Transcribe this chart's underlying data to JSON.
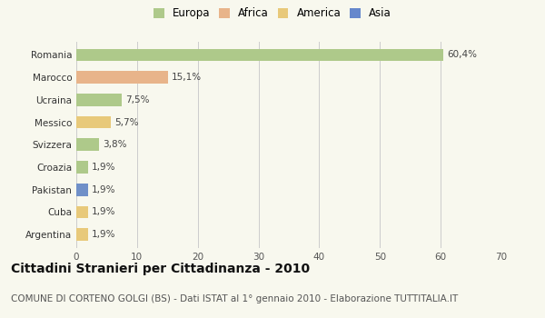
{
  "categories": [
    "Romania",
    "Marocco",
    "Ucraina",
    "Messico",
    "Svizzera",
    "Croazia",
    "Pakistan",
    "Cuba",
    "Argentina"
  ],
  "values": [
    60.4,
    15.1,
    7.5,
    5.7,
    3.8,
    1.9,
    1.9,
    1.9,
    1.9
  ],
  "labels": [
    "60,4%",
    "15,1%",
    "7,5%",
    "5,7%",
    "3,8%",
    "1,9%",
    "1,9%",
    "1,9%",
    "1,9%"
  ],
  "bar_colors": [
    "#aec98a",
    "#e8b48a",
    "#aec98a",
    "#e8c97a",
    "#aec98a",
    "#aec98a",
    "#7090c8",
    "#e8c97a",
    "#e8c97a"
  ],
  "legend_labels": [
    "Europa",
    "Africa",
    "America",
    "Asia"
  ],
  "legend_colors": [
    "#aec98a",
    "#e8b48a",
    "#e8c97a",
    "#6688cc"
  ],
  "xlim": [
    0,
    70
  ],
  "xticks": [
    0,
    10,
    20,
    30,
    40,
    50,
    60,
    70
  ],
  "title": "Cittadini Stranieri per Cittadinanza - 2010",
  "subtitle": "COMUNE DI CORTENO GOLGI (BS) - Dati ISTAT al 1° gennaio 2010 - Elaborazione TUTTITALIA.IT",
  "bg_color": "#f8f8ee",
  "grid_color": "#cccccc",
  "bar_height": 0.55,
  "title_fontsize": 10,
  "subtitle_fontsize": 7.5,
  "label_fontsize": 7.5,
  "tick_fontsize": 7.5,
  "legend_fontsize": 8.5
}
